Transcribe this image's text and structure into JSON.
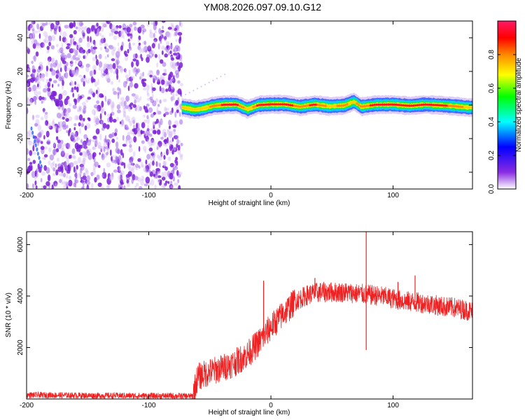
{
  "title": "YM08.2026.097.09.10.G12",
  "chart_data": [
    {
      "type": "heatmap",
      "name": "spectrogram",
      "xlabel": "Height of straight line (km)",
      "ylabel": "Frequency (Hz)",
      "xlim": [
        -200,
        165
      ],
      "ylim": [
        -50,
        50
      ],
      "x_ticks": [
        -200,
        -100,
        0,
        100
      ],
      "y_ticks": [
        -40,
        -20,
        0,
        20,
        40
      ],
      "noise_region_x": [
        -200,
        -73
      ],
      "signal_band": {
        "x_start": -73,
        "x_end": 165,
        "freq_center": 0,
        "freq_halfwidth": 3,
        "points": [
          {
            "x": -72,
            "freq": -1.5,
            "amp": 0.6
          },
          {
            "x": -62,
            "freq": -2.8,
            "amp": 0.55
          },
          {
            "x": -55,
            "freq": -2.0,
            "amp": 0.6
          },
          {
            "x": -47,
            "freq": -0.5,
            "amp": 0.7
          },
          {
            "x": -38,
            "freq": 0.2,
            "amp": 0.85
          },
          {
            "x": -28,
            "freq": 0.3,
            "amp": 0.9
          },
          {
            "x": -19,
            "freq": -2.5,
            "amp": 0.5
          },
          {
            "x": -10,
            "freq": 0.0,
            "amp": 0.85
          },
          {
            "x": 0,
            "freq": 0.4,
            "amp": 0.95
          },
          {
            "x": 12,
            "freq": 0.4,
            "amp": 0.95
          },
          {
            "x": 24,
            "freq": -1.0,
            "amp": 0.7
          },
          {
            "x": 36,
            "freq": 0.3,
            "amp": 0.85
          },
          {
            "x": 48,
            "freq": -0.8,
            "amp": 0.6
          },
          {
            "x": 60,
            "freq": -0.3,
            "amp": 0.7
          },
          {
            "x": 68,
            "freq": 2.0,
            "amp": 0.6
          },
          {
            "x": 74,
            "freq": -1.0,
            "amp": 0.75
          },
          {
            "x": 86,
            "freq": 0.2,
            "amp": 0.85
          },
          {
            "x": 100,
            "freq": 0.3,
            "amp": 0.9
          },
          {
            "x": 114,
            "freq": -0.5,
            "amp": 0.8
          },
          {
            "x": 126,
            "freq": 0.3,
            "amp": 0.9
          },
          {
            "x": 140,
            "freq": -0.2,
            "amp": 0.85
          },
          {
            "x": 152,
            "freq": -0.8,
            "amp": 0.7
          },
          {
            "x": 162,
            "freq": -1.5,
            "amp": 0.6
          }
        ]
      },
      "colorbar": {
        "label": "Normalized spectral amplitude",
        "range": [
          0,
          1
        ],
        "ticks": [
          0.0,
          0.2,
          0.4,
          0.6,
          0.8
        ],
        "tick_labels": [
          "0.0",
          "0.2",
          "0.4",
          "0.6",
          "0.8"
        ],
        "colors": [
          "#ffffff",
          "#8a2be2",
          "#0000ff",
          "#00ffff",
          "#00ff00",
          "#ffff00",
          "#ff8800",
          "#ff0000",
          "#ff1a66"
        ]
      }
    },
    {
      "type": "line",
      "name": "snr",
      "xlabel": "Height of straight line (km)",
      "ylabel": "SNR (10 * v/v)",
      "xlim": [
        -200,
        165
      ],
      "ylim": [
        0,
        6500
      ],
      "x_ticks": [
        -200,
        -100,
        0,
        100
      ],
      "y_ticks": [
        2000,
        4000,
        6000
      ],
      "color": "#ee2222",
      "series": {
        "x": [
          -200,
          -180,
          -160,
          -140,
          -120,
          -100,
          -80,
          -64,
          -60,
          -50,
          -40,
          -30,
          -20,
          -10,
          0,
          10,
          20,
          30,
          40,
          50,
          60,
          70,
          80,
          90,
          100,
          110,
          120,
          130,
          140,
          150,
          165
        ],
        "mean": [
          150,
          150,
          140,
          130,
          130,
          120,
          120,
          110,
          850,
          1050,
          1200,
          1400,
          1700,
          2200,
          2800,
          3300,
          3800,
          4050,
          4150,
          4150,
          4150,
          4100,
          4050,
          4000,
          3900,
          3800,
          3750,
          3700,
          3600,
          3550,
          3400
        ],
        "spikes": [
          {
            "x": -6,
            "y": 4600
          },
          {
            "x": 78,
            "y": 6500
          },
          {
            "x": 78,
            "y": 1900
          },
          {
            "x": 36,
            "y": 4700
          },
          {
            "x": 104,
            "y": 4550
          },
          {
            "x": 118,
            "y": 4800
          }
        ]
      }
    }
  ]
}
